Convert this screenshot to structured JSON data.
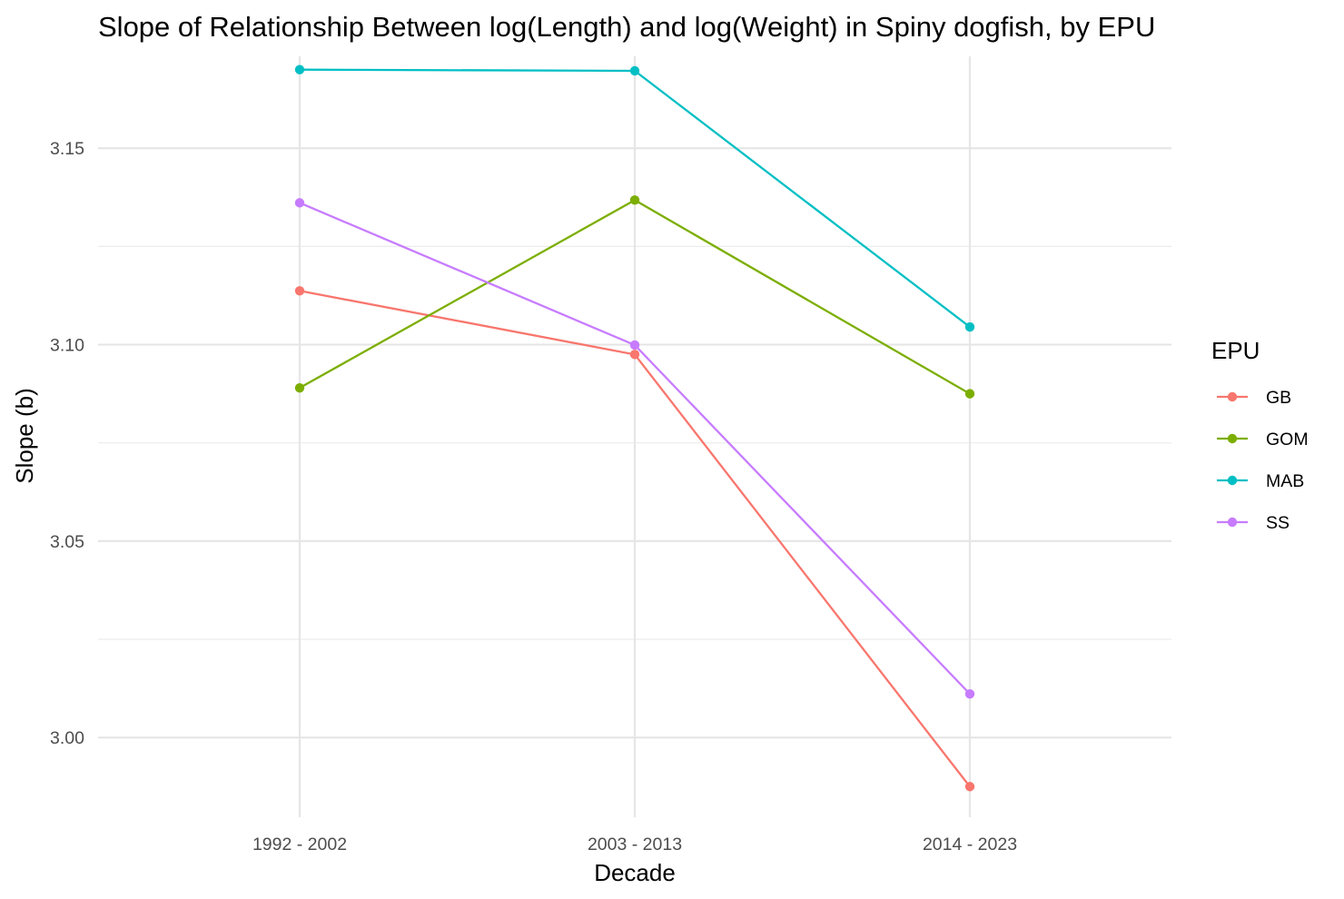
{
  "chart_data": {
    "type": "line",
    "title": "Slope of Relationship Between log(Length) and log(Weight) in Spiny dogfish, by EPU",
    "xlabel": "Decade",
    "ylabel": "Slope (b)",
    "categories": [
      "1992 - 2002",
      "2003 - 2013",
      "2014 - 2023"
    ],
    "ylim": [
      2.9797,
      3.1734
    ],
    "y_ticks": [
      3.0,
      3.05,
      3.1,
      3.15
    ],
    "y_tick_labels": [
      "3.00",
      "3.05",
      "3.10",
      "3.15"
    ],
    "grid": true,
    "legend_title": "EPU",
    "legend_position": "right",
    "series": [
      {
        "name": "GB",
        "color": "#F8766D",
        "values": [
          3.1137,
          3.0975,
          2.9875
        ]
      },
      {
        "name": "GOM",
        "color": "#7CAE00",
        "values": [
          3.089,
          3.1368,
          3.0875
        ]
      },
      {
        "name": "MAB",
        "color": "#00BFC4",
        "values": [
          3.17,
          3.1697,
          3.1045
        ]
      },
      {
        "name": "SS",
        "color": "#C77CFF",
        "values": [
          3.1361,
          3.0999,
          3.0111
        ]
      }
    ]
  }
}
